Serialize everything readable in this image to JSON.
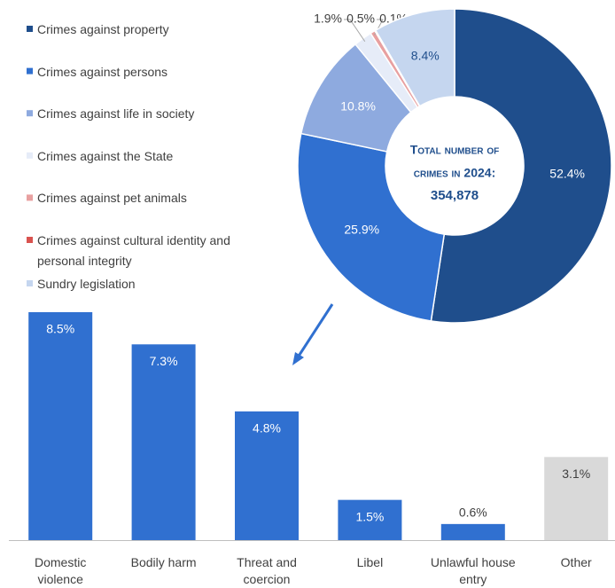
{
  "chart_data": [
    {
      "type": "donut",
      "categories": [
        "Crimes against property",
        "Crimes against persons",
        "Crimes against life in society",
        "Crimes against the State",
        "Crimes against pet animals",
        "Crimes against cultural identity and personal integrity",
        "Sundry legislation"
      ],
      "values": [
        52.4,
        25.9,
        10.8,
        1.9,
        0.5,
        0.1,
        8.4
      ],
      "value_labels": [
        "52.4%",
        "25.9%",
        "10.8%",
        "1.9%",
        "0.5%",
        "0.1%",
        "8.4%"
      ],
      "colors": [
        "#1f4e8c",
        "#3070d0",
        "#8eaadf",
        "#e6ecf8",
        "#e8a0a0",
        "#d9534f",
        "#c5d6ef"
      ],
      "center_text": [
        "Total number of",
        "crimes in 2024:",
        "354,878"
      ],
      "legend": "top-left"
    },
    {
      "type": "bar",
      "categories": [
        "Domestic violence",
        "Bodily harm",
        "Threat and coercion",
        "Libel",
        "Unlawful house entry",
        "Other"
      ],
      "values": [
        8.5,
        7.3,
        4.8,
        1.5,
        0.6,
        3.1
      ],
      "value_labels": [
        "8.5%",
        "7.3%",
        "4.8%",
        "1.5%",
        "0.6%",
        "3.1%"
      ],
      "colors": [
        "#3070d0",
        "#3070d0",
        "#3070d0",
        "#3070d0",
        "#3070d0",
        "#d9d9d9"
      ]
    }
  ]
}
